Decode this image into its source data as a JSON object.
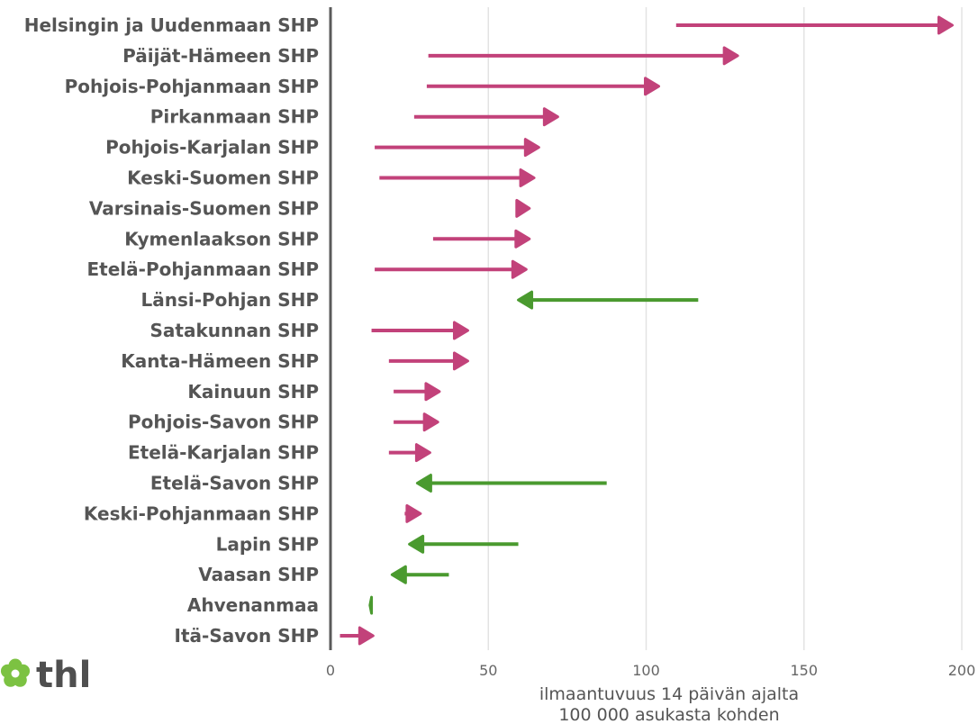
{
  "colors": {
    "increase": "#c2427a",
    "decrease": "#4a9a2f",
    "grid": "#e3e3e3",
    "axis": "#5a5a5a",
    "logo_flower": "#7cc242"
  },
  "logo": {
    "text": "thl",
    "icon": "thl-flower-icon"
  },
  "chart_data": {
    "type": "arrow-dumbbell",
    "xlabel_line1": "ilmaantuvuus 14 päivän ajalta",
    "xlabel_line2": "100 000 asukasta kohden",
    "xlim": [
      0,
      200
    ],
    "xticks": [
      0,
      50,
      100,
      150,
      200
    ],
    "grid": true,
    "categories": [
      "Helsingin ja Uudenmaan SHP",
      "Päijät-Hämeen SHP",
      "Pohjois-Pohjanmaan SHP",
      "Pirkanmaan SHP",
      "Pohjois-Karjalan SHP",
      "Keski-Suomen SHP",
      "Varsinais-Suomen SHP",
      "Kymenlaakson SHP",
      "Etelä-Pohjanmaan SHP",
      "Länsi-Pohjan SHP",
      "Satakunnan SHP",
      "Kanta-Hämeen SHP",
      "Kainuun SHP",
      "Pohjois-Savon SHP",
      "Etelä-Karjalan SHP",
      "Etelä-Savon SHP",
      "Keski-Pohjanmaan SHP",
      "Lapin SHP",
      "Vaasan SHP",
      "Ahvenanmaa",
      "Itä-Savon SHP"
    ],
    "start": [
      109.5,
      31,
      30.5,
      26.5,
      14,
      15.5,
      59,
      32.5,
      14,
      116.5,
      13,
      18.5,
      20,
      20,
      18.5,
      87.5,
      23.5,
      59.5,
      37.5,
      13,
      3
    ],
    "end": [
      197,
      129,
      104,
      72,
      66,
      64.5,
      63,
      63,
      62,
      59.5,
      43.5,
      43.5,
      34.5,
      34,
      31.5,
      27.5,
      28.5,
      25,
      19.5,
      12.5,
      13.5
    ]
  }
}
